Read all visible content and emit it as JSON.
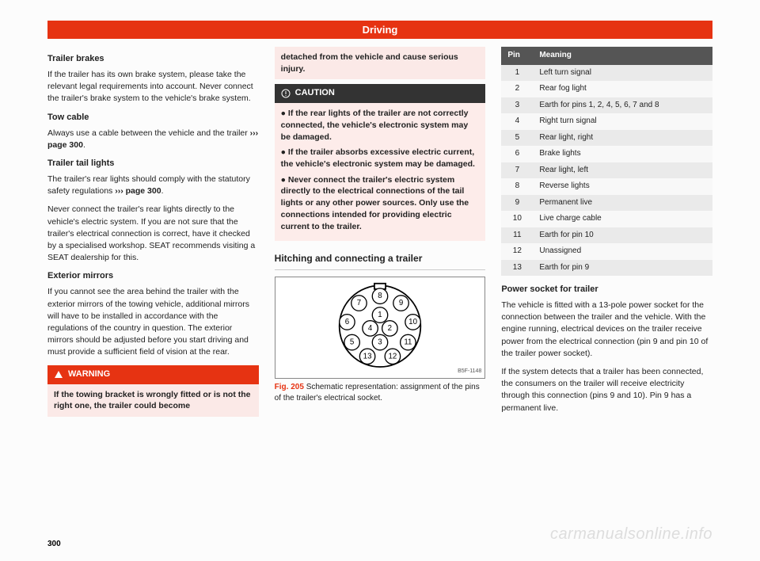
{
  "header": {
    "title": "Driving"
  },
  "col1": {
    "h1": "Trailer brakes",
    "p1": "If the trailer has its own brake system, please take the relevant legal requirements into account. Never connect the trailer's brake system to the vehicle's brake system.",
    "h2": "Tow cable",
    "p2a": "Always use a cable between the vehicle and the trailer ",
    "p2b": "››› page 300",
    "p2c": ".",
    "h3": "Trailer tail lights",
    "p3a": "The trailer's rear lights should comply with the statutory safety regulations ",
    "p3b": "››› page 300",
    "p3c": ".",
    "p4": "Never connect the trailer's rear lights directly to the vehicle's electric system. If you are not sure that the trailer's electrical connection is correct, have it checked by a specialised workshop. SEAT recommends visiting a SEAT dealership for this.",
    "h4": "Exterior mirrors",
    "p5": "If you cannot see the area behind the trailer with the exterior mirrors of the towing vehicle, additional mirrors will have to be installed in accordance with the regulations of the country in question. The exterior mirrors should be adjusted before you start driving and must provide a sufficient field of vision at the rear.",
    "warn_title": "WARNING",
    "warn_body": "If the towing bracket is wrongly fitted or is not the right one, the trailer could become"
  },
  "col2": {
    "warn_cont": "detached from the vehicle and cause serious injury.",
    "caut_title": "CAUTION",
    "caut_b1": "● If the rear lights of the trailer are not correctly connected, the vehicle's electronic system may be damaged.",
    "caut_b2": "● If the trailer absorbs excessive electric current, the vehicle's electronic system may be damaged.",
    "caut_b3": "● Never connect the trailer's electric system directly to the electrical connections of the tail lights or any other power sources. Only use the connections intended for providing electric current to the trailer.",
    "sect": "Hitching and connecting a trailer",
    "fig_label": "B5F-1148",
    "fig_num": "Fig. 205",
    "fig_text": "   Schematic representation: assignment of the pins of the trailer's electrical socket.",
    "pins": [
      "1",
      "2",
      "3",
      "4",
      "5",
      "6",
      "7",
      "8",
      "9",
      "10",
      "11",
      "12",
      "13"
    ]
  },
  "col3": {
    "th1": "Pin",
    "th2": "Meaning",
    "rows": [
      {
        "pin": "1",
        "m": "Left turn signal"
      },
      {
        "pin": "2",
        "m": "Rear fog light"
      },
      {
        "pin": "3",
        "m": "Earth for pins 1, 2, 4, 5, 6, 7 and 8"
      },
      {
        "pin": "4",
        "m": "Right turn signal"
      },
      {
        "pin": "5",
        "m": "Rear light, right"
      },
      {
        "pin": "6",
        "m": "Brake lights"
      },
      {
        "pin": "7",
        "m": "Rear light, left"
      },
      {
        "pin": "8",
        "m": "Reverse lights"
      },
      {
        "pin": "9",
        "m": "Permanent live"
      },
      {
        "pin": "10",
        "m": "Live charge cable"
      },
      {
        "pin": "11",
        "m": "Earth for pin 10"
      },
      {
        "pin": "12",
        "m": "Unassigned"
      },
      {
        "pin": "13",
        "m": "Earth for pin 9"
      }
    ],
    "h1": "Power socket for trailer",
    "p1": "The vehicle is fitted with a 13-pole power socket for the connection between the trailer and the vehicle. With the engine running, electrical devices on the trailer receive power from the electrical connection (pin 9 and pin 10 of the trailer power socket).",
    "p2": "If the system detects that a trailer has been connected, the consumers on the trailer will receive electricity through this connection (pins 9 and 10). Pin 9 has a permanent live."
  },
  "pagenum": "300",
  "watermark": "carmanualsonline.info",
  "colors": {
    "brand": "#e63312",
    "warn_bg": "#fbe9e7",
    "caut_head": "#333333",
    "odd_row": "#eaeaea",
    "even_row": "#f8f8f8"
  }
}
